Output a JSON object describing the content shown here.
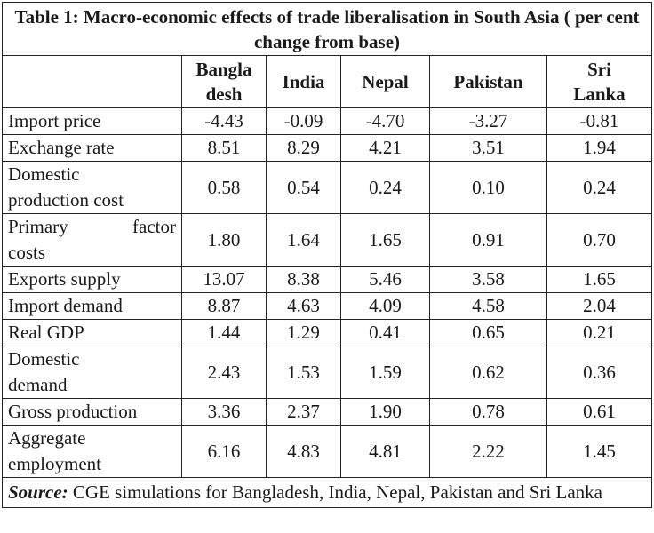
{
  "table": {
    "title": "Table 1: Macro-economic effects of trade liberalisation in South Asia ( per cent change from base)",
    "headers": [
      {
        "line1": "Bangla",
        "line2": "desh"
      },
      {
        "line1": "India",
        "line2": ""
      },
      {
        "line1": "Nepal",
        "line2": ""
      },
      {
        "line1": "Pakistan",
        "line2": ""
      },
      {
        "line1": "Sri",
        "line2": "Lanka"
      }
    ],
    "rows": [
      {
        "label1": "Import price",
        "label2": "",
        "values": [
          "-4.43",
          "-0.09",
          "-4.70",
          "-3.27",
          "-0.81"
        ]
      },
      {
        "label1": "Exchange rate",
        "label2": "",
        "values": [
          "8.51",
          "8.29",
          "4.21",
          "3.51",
          "1.94"
        ]
      },
      {
        "label1": "Domestic",
        "label2": "production cost",
        "values": [
          "0.58",
          "0.54",
          "0.24",
          "0.10",
          "0.24"
        ]
      },
      {
        "label1a": "Primary",
        "label1b": "factor",
        "label2": "costs",
        "values": [
          "1.80",
          "1.64",
          "1.65",
          "0.91",
          "0.70"
        ]
      },
      {
        "label1": "Exports supply",
        "label2": "",
        "values": [
          "13.07",
          "8.38",
          "5.46",
          "3.58",
          "1.65"
        ]
      },
      {
        "label1": "Import demand",
        "label2": "",
        "values": [
          "8.87",
          "4.63",
          "4.09",
          "4.58",
          "2.04"
        ]
      },
      {
        "label1": "Real GDP",
        "label2": "",
        "values": [
          "1.44",
          "1.29",
          "0.41",
          "0.65",
          "0.21"
        ]
      },
      {
        "label1": "Domestic",
        "label2": "demand",
        "values": [
          "2.43",
          "1.53",
          "1.59",
          "0.62",
          "0.36"
        ]
      },
      {
        "label1": "Gross production",
        "label2": "",
        "values": [
          "3.36",
          "2.37",
          "1.90",
          "0.78",
          "0.61"
        ]
      },
      {
        "label1": "Aggregate",
        "label2": "employment",
        "values": [
          "6.16",
          "4.83",
          "4.81",
          "2.22",
          "1.45"
        ]
      }
    ],
    "source_lead": "Source:",
    "source_text": " CGE simulations for Bangladesh, India, Nepal, Pakistan and Sri Lanka"
  }
}
